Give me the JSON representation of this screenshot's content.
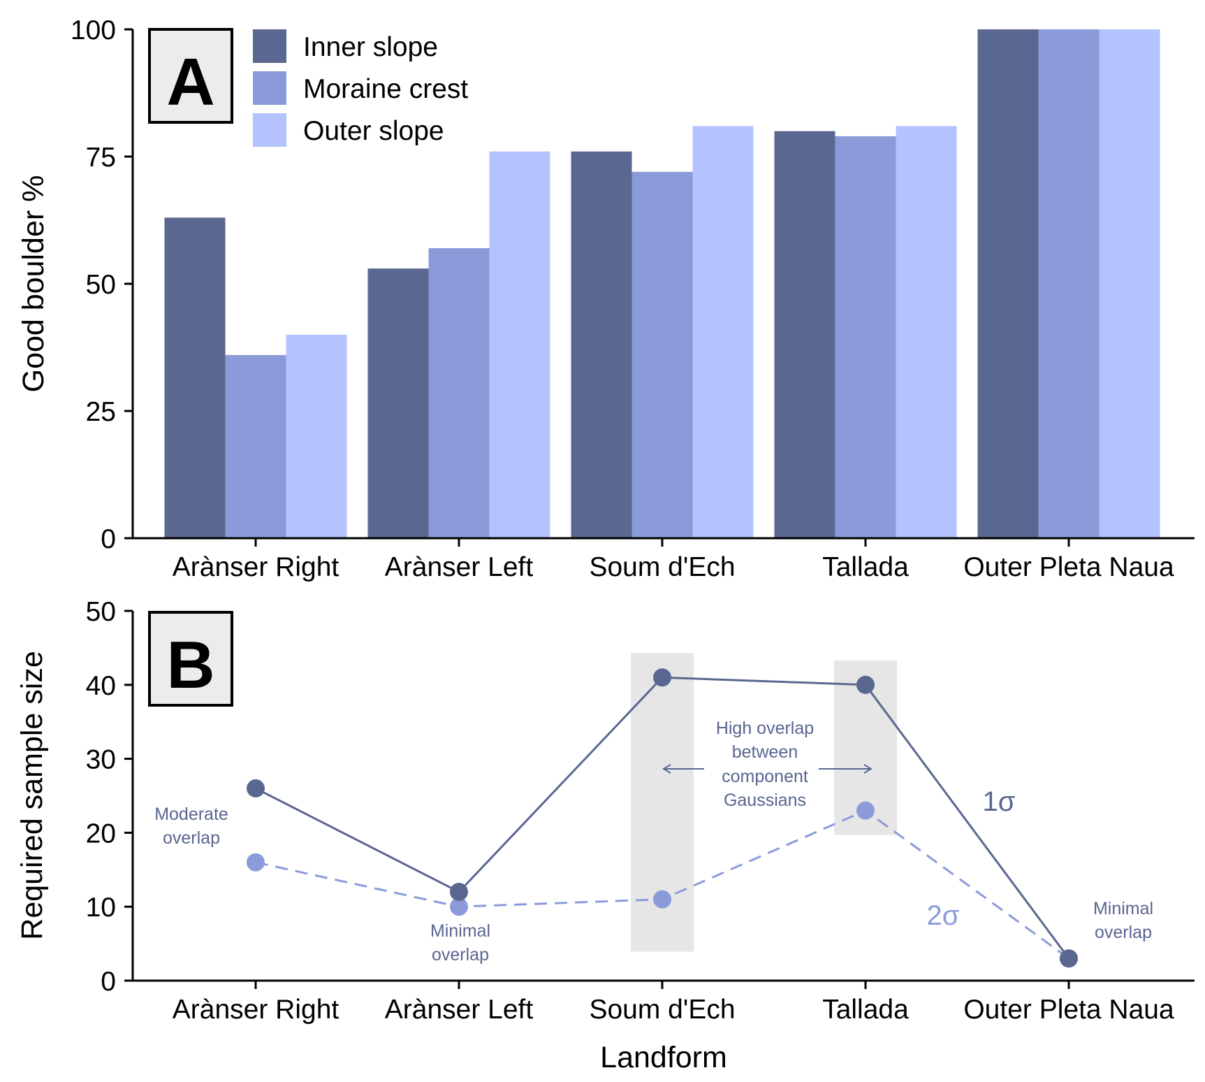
{
  "chart_data": [
    {
      "type": "bar",
      "panel_label": "A",
      "categories": [
        "Arànser Right",
        "Arànser Left",
        "Soum d'Ech",
        "Tallada",
        "Outer Pleta Naua"
      ],
      "series": [
        {
          "name": "Inner slope",
          "color": "#5a6790",
          "values": [
            63,
            53,
            76,
            80,
            100
          ]
        },
        {
          "name": "Moraine crest",
          "color": "#8b9bda",
          "values": [
            36,
            57,
            72,
            79,
            100
          ]
        },
        {
          "name": "Outer slope",
          "color": "#b4c3fd",
          "values": [
            40,
            76,
            81,
            81,
            100
          ]
        }
      ],
      "xlabel": "",
      "ylabel": "Good boulder %",
      "ylim": [
        0,
        100
      ],
      "yticks": [
        "0",
        "25",
        "50",
        "75",
        "100"
      ],
      "legend_position": "top-left",
      "grid": false
    },
    {
      "type": "line",
      "panel_label": "B",
      "categories": [
        "Arànser Right",
        "Arànser Left",
        "Soum d'Ech",
        "Tallada",
        "Outer Pleta Naua"
      ],
      "series": [
        {
          "name": "1σ",
          "color": "#5a6790",
          "style": "solid",
          "values": [
            26,
            12,
            41,
            40,
            3
          ]
        },
        {
          "name": "2σ",
          "color": "#8b9bda",
          "style": "dashed",
          "values": [
            16,
            10,
            11,
            23,
            3
          ]
        }
      ],
      "xlabel": "Landform",
      "ylabel": "Required sample size",
      "ylim": [
        0,
        50
      ],
      "yticks": [
        "0",
        "10",
        "20",
        "30",
        "40",
        "50"
      ],
      "highlight_bands": [
        "Soum d'Ech",
        "Tallada"
      ],
      "highlight_color": "#e6e6e6",
      "annotations": {
        "moderate": [
          "Moderate",
          "overlap"
        ],
        "minimal_left": [
          "Minimal",
          "overlap"
        ],
        "high": [
          "High overlap",
          "between",
          "component",
          "Gaussians"
        ],
        "minimal_right": [
          "Minimal",
          "overlap"
        ]
      },
      "grid": false
    }
  ]
}
